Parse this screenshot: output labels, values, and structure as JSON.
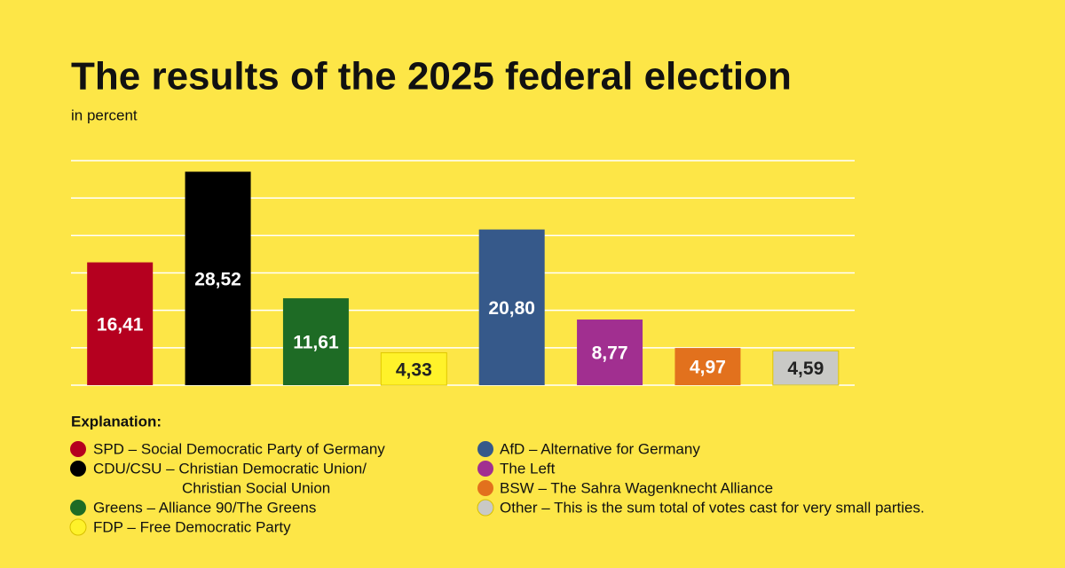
{
  "chart_data": {
    "type": "bar",
    "title": "The results of the 2025 federal election",
    "subtitle": "in percent",
    "legend_title": "Explanation:",
    "categories": [
      [
        "SPD – Social Democratic Party of Germany"
      ],
      [
        "CDU/CSU – Christian Democratic Union/",
        "Christian Social Union"
      ],
      [
        "Greens – Alliance 90/The Greens"
      ],
      [
        "FDP – Free Democratic Party"
      ],
      [
        "AfD – Alternative for Germany"
      ],
      [
        "The Left"
      ],
      [
        "BSW – The Sahra Wagenknecht Alliance"
      ],
      [
        "Other – This is the sum total of votes cast for very small parties."
      ]
    ],
    "values": [
      16.41,
      28.52,
      11.61,
      4.33,
      20.8,
      8.77,
      4.97,
      4.59
    ],
    "value_labels": [
      "16,41",
      "28,52",
      "11,61",
      "4,33",
      "20,80",
      "8,77",
      "4,97",
      "4,59"
    ],
    "colors": [
      "#b5001f",
      "#000000",
      "#1e6b25",
      "#fff22a",
      "#36598a",
      "#a12f90",
      "#e2711d",
      "#c9c9c6"
    ],
    "ylim": [
      0,
      30
    ],
    "yticks": [
      0,
      5,
      10,
      15,
      20,
      25,
      30
    ],
    "grid": true
  }
}
